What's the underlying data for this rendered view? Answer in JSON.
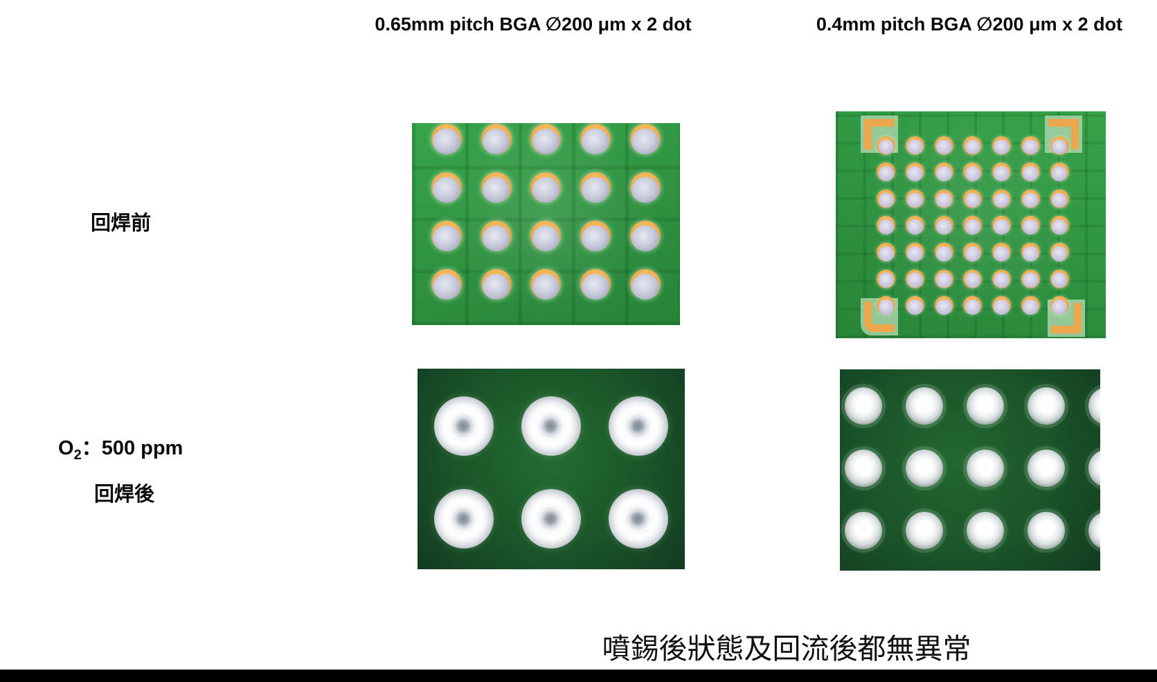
{
  "headers": [
    {
      "text": "0.65mm pitch BGA ∅200 μm x 2 dot"
    },
    {
      "text": "0.4mm pitch BGA ∅200 μm x 2 dot"
    }
  ],
  "row_labels": {
    "before": "回焊前",
    "o2_prefix": "O",
    "o2_sub": "2",
    "o2_suffix": "：500 ppm",
    "after": "回焊後"
  },
  "caption": "噴錫後狀態及回流後都無異常",
  "photos": [
    {
      "name": "before-reflow-065",
      "description": "solder paste dots printed on 0.65mm pitch BGA pads, green PCB",
      "rows": 4,
      "cols": 5,
      "dot": "paste-lg",
      "dot_name": "solder-paste-dot",
      "fiducials": false
    },
    {
      "name": "before-reflow-04",
      "description": "solder paste dots printed on 0.4mm pitch BGA pads with four corner fiducial pads, green PCB",
      "rows": 7,
      "cols": 7,
      "dot": "paste-sm",
      "dot_name": "solder-paste-dot",
      "fiducials": true
    },
    {
      "name": "after-reflow-065",
      "description": "reflowed shiny solder balls on 0.65mm pitch BGA pads, dark green PCB",
      "rows": 2,
      "cols": 3,
      "dot": "ball-lg",
      "dot_name": "solder-ball",
      "fiducials": false
    },
    {
      "name": "after-reflow-04",
      "description": "reflowed shiny solder balls on 0.4mm pitch BGA pads, dark green PCB",
      "rows": 3,
      "cols": 5,
      "dot": "ball-sm",
      "dot_name": "solder-ball",
      "fiducials": false
    }
  ],
  "colors": {
    "pcb_green_light": "#2f9340",
    "pcb_green_dark": "#1a5528",
    "pad_orange": "#efa746",
    "paste_silver": "#c9ccdb",
    "ball_white": "#ffffff",
    "text_black": "#0a0a0a",
    "bar_black": "#000000"
  }
}
